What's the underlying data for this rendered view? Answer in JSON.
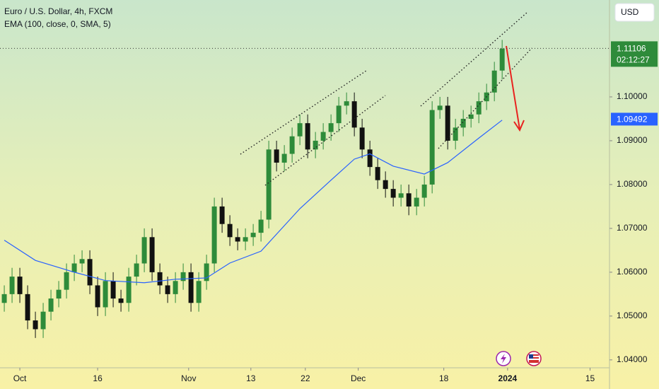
{
  "chart_data": {
    "type": "candlestick",
    "title": "Euro / U.S. Dollar, 4h, FXCM",
    "indicator": "EMA (100, close, 0, SMA, 5)",
    "currency": "USD",
    "countdown": "02:12:27",
    "up_color": "#2e8b3a",
    "down_color": "#111111",
    "x": [
      -2,
      -1,
      0,
      1,
      2,
      3,
      4,
      5,
      6,
      7,
      8,
      9,
      10,
      11,
      12,
      13,
      14,
      15,
      16,
      17,
      18,
      19,
      20,
      21,
      22,
      23,
      24,
      25,
      26,
      27,
      28,
      29,
      30,
      31,
      32,
      33,
      34,
      35,
      36,
      37,
      38,
      39,
      40,
      41,
      42,
      43,
      44,
      45,
      46,
      47,
      48,
      49,
      50,
      51,
      52,
      53,
      54,
      55,
      56,
      57,
      58,
      59,
      60,
      61,
      62
    ],
    "open": [
      1.053,
      1.055,
      1.059,
      1.055,
      1.049,
      1.047,
      1.051,
      1.054,
      1.056,
      1.06,
      1.062,
      1.063,
      1.057,
      1.052,
      1.058,
      1.054,
      1.053,
      1.059,
      1.062,
      1.068,
      1.06,
      1.057,
      1.055,
      1.058,
      1.06,
      1.053,
      1.058,
      1.062,
      1.075,
      1.071,
      1.068,
      1.067,
      1.068,
      1.069,
      1.072,
      1.088,
      1.085,
      1.087,
      1.091,
      1.094,
      1.088,
      1.09,
      1.092,
      1.094,
      1.098,
      1.099,
      1.093,
      1.088,
      1.084,
      1.081,
      1.079,
      1.077,
      1.078,
      1.075,
      1.077,
      1.08,
      1.097,
      1.098,
      1.09,
      1.093,
      1.095,
      1.096,
      1.099,
      1.101,
      1.106
    ],
    "high": [
      1.057,
      1.061,
      1.061,
      1.057,
      1.051,
      1.053,
      1.056,
      1.058,
      1.062,
      1.064,
      1.065,
      1.065,
      1.059,
      1.06,
      1.06,
      1.056,
      1.061,
      1.064,
      1.07,
      1.07,
      1.062,
      1.059,
      1.06,
      1.062,
      1.062,
      1.06,
      1.064,
      1.077,
      1.077,
      1.073,
      1.07,
      1.07,
      1.071,
      1.074,
      1.09,
      1.09,
      1.089,
      1.093,
      1.096,
      1.096,
      1.092,
      1.094,
      1.096,
      1.1,
      1.101,
      1.101,
      1.095,
      1.09,
      1.086,
      1.083,
      1.081,
      1.08,
      1.08,
      1.079,
      1.082,
      1.099,
      1.1,
      1.1,
      1.095,
      1.097,
      1.098,
      1.101,
      1.103,
      1.108,
      1.113
    ],
    "low": [
      1.051,
      1.053,
      1.053,
      1.047,
      1.045,
      1.045,
      1.049,
      1.052,
      1.054,
      1.058,
      1.06,
      1.055,
      1.05,
      1.05,
      1.052,
      1.051,
      1.051,
      1.057,
      1.06,
      1.058,
      1.055,
      1.053,
      1.053,
      1.056,
      1.051,
      1.051,
      1.056,
      1.06,
      1.069,
      1.066,
      1.065,
      1.065,
      1.066,
      1.067,
      1.07,
      1.083,
      1.083,
      1.085,
      1.089,
      1.086,
      1.086,
      1.088,
      1.09,
      1.092,
      1.096,
      1.091,
      1.086,
      1.082,
      1.079,
      1.077,
      1.075,
      1.075,
      1.073,
      1.073,
      1.075,
      1.078,
      1.095,
      1.088,
      1.088,
      1.091,
      1.093,
      1.094,
      1.097,
      1.099,
      1.104
    ],
    "close": [
      1.055,
      1.059,
      1.055,
      1.049,
      1.047,
      1.051,
      1.054,
      1.056,
      1.06,
      1.062,
      1.063,
      1.057,
      1.052,
      1.058,
      1.054,
      1.053,
      1.059,
      1.062,
      1.068,
      1.06,
      1.057,
      1.055,
      1.058,
      1.06,
      1.053,
      1.058,
      1.062,
      1.075,
      1.071,
      1.068,
      1.067,
      1.068,
      1.069,
      1.072,
      1.088,
      1.085,
      1.087,
      1.091,
      1.094,
      1.088,
      1.09,
      1.092,
      1.094,
      1.098,
      1.099,
      1.093,
      1.088,
      1.084,
      1.081,
      1.079,
      1.077,
      1.078,
      1.075,
      1.077,
      1.08,
      1.097,
      1.098,
      1.09,
      1.093,
      1.095,
      1.096,
      1.099,
      1.101,
      1.106,
      1.111
    ],
    "ema": {
      "color": "#2962ff",
      "x": [
        -2,
        2,
        7,
        11,
        16,
        20,
        24,
        27,
        31,
        36,
        40,
        43,
        45,
        48,
        52,
        55,
        59,
        62
      ],
      "values": [
        1.0673,
        1.0627,
        1.06,
        1.0581,
        1.0576,
        1.0584,
        1.0587,
        1.0621,
        1.0648,
        1.0745,
        1.081,
        1.0858,
        1.087,
        1.0842,
        1.0824,
        1.085,
        1.0906,
        1.0947
      ]
    },
    "last_price": {
      "value": 1.11106,
      "label": "1.11106"
    },
    "ema_last": {
      "value": 1.09492,
      "label": "1.09492"
    },
    "xlim": [
      -2.55,
      75.8
    ],
    "ylim": [
      1.0382,
      1.1221
    ],
    "yticks": [
      {
        "value": 1.04,
        "label": "1.04000"
      },
      {
        "value": 1.05,
        "label": "1.05000"
      },
      {
        "value": 1.06,
        "label": "1.06000"
      },
      {
        "value": 1.07,
        "label": "1.07000"
      },
      {
        "value": 1.08,
        "label": "1.08000"
      },
      {
        "value": 1.09,
        "label": "1.09000"
      },
      {
        "value": 1.1,
        "label": "1.10000"
      }
    ],
    "xticks": [
      {
        "value": 0,
        "label": "Oct"
      },
      {
        "value": 10,
        "label": "16"
      },
      {
        "value": 21.7,
        "label": "Nov"
      },
      {
        "value": 29.7,
        "label": "13"
      },
      {
        "value": 36.7,
        "label": "22"
      },
      {
        "value": 43.5,
        "label": "Dec"
      },
      {
        "value": 54.5,
        "label": "18"
      },
      {
        "value": 62.7,
        "label": "2024"
      },
      {
        "value": 73.3,
        "label": "15"
      }
    ]
  }
}
